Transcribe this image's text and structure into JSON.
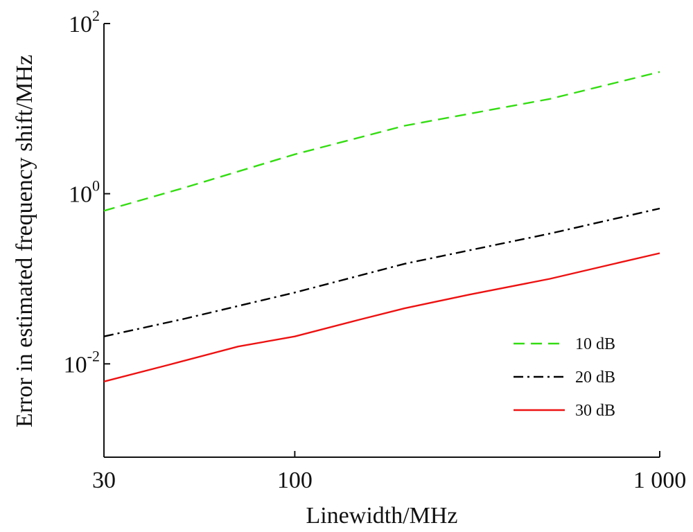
{
  "chart_data": {
    "type": "line",
    "xlabel": "Linewidth/MHz",
    "ylabel": "Error in estimated frequency shift/MHz",
    "xscale": "log",
    "yscale": "log",
    "xlim": [
      30,
      1000
    ],
    "ylim": [
      0.0008,
      100
    ],
    "grid": false,
    "legend_position": "bottom-right",
    "x_ticks": [
      {
        "value": 30,
        "label": "30"
      },
      {
        "value": 100,
        "label": "100"
      },
      {
        "value": 1000,
        "label": "1 000"
      }
    ],
    "y_ticks": [
      {
        "value": 100,
        "base": "10",
        "exp": "2"
      },
      {
        "value": 1,
        "base": "10",
        "exp": "0"
      },
      {
        "value": 0.01,
        "base": "10",
        "exp": "-2"
      }
    ],
    "series": [
      {
        "name": "10 dB",
        "color": "#33dd11",
        "dash": "dashed",
        "x": [
          30,
          50,
          100,
          200,
          500,
          1000
        ],
        "y": [
          0.63,
          1.18,
          2.9,
          6.3,
          13.0,
          27.0
        ]
      },
      {
        "name": "20 dB",
        "color": "#000000",
        "dash": "dashdot",
        "x": [
          30,
          50,
          100,
          200,
          500,
          1000
        ],
        "y": [
          0.021,
          0.034,
          0.069,
          0.15,
          0.34,
          0.67
        ]
      },
      {
        "name": "30 dB",
        "color": "#ee1111",
        "dash": "solid",
        "x": [
          30,
          45,
          70,
          100,
          150,
          200,
          300,
          500,
          700,
          1000
        ],
        "y": [
          0.0062,
          0.0097,
          0.016,
          0.021,
          0.033,
          0.045,
          0.065,
          0.1,
          0.14,
          0.2
        ]
      }
    ]
  }
}
